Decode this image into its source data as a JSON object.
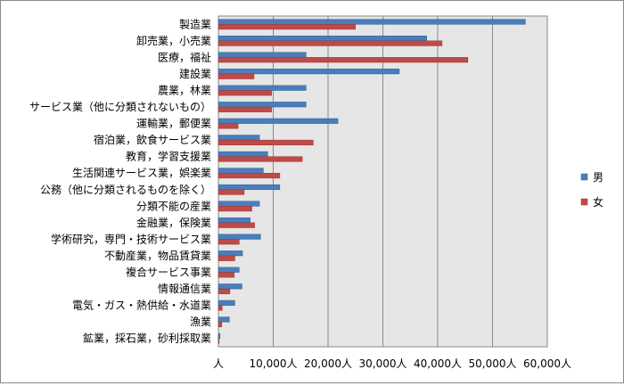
{
  "chart_data": {
    "type": "bar",
    "orientation": "horizontal",
    "categories": [
      "製造業",
      "卸売業，小売業",
      "医療，福祉",
      "建設業",
      "農業，林業",
      "サービス業（他に分類されないもの）",
      "運輸業，郵便業",
      "宿泊業，飲食サービス業",
      "教育，学習支援業",
      "生活関連サービス業，娯楽業",
      "公務（他に分類されるものを除く）",
      "分類不能の産業",
      "金融業，保険業",
      "学術研究，専門・技術サービス業",
      "不動産業，物品賃貸業",
      "複合サービス事業",
      "情報通信業",
      "電気・ガス・熱供給・水道業",
      "漁業",
      "鉱業，採石業，砂利採取業"
    ],
    "series": [
      {
        "name": "男",
        "color": "#4a7ebb",
        "values": [
          56000,
          38000,
          16000,
          33000,
          16000,
          16000,
          21800,
          7500,
          9000,
          8200,
          11200,
          7500,
          5800,
          7700,
          4400,
          3800,
          4300,
          3000,
          2000,
          300
        ]
      },
      {
        "name": "女",
        "color": "#be4b48",
        "values": [
          25000,
          40800,
          45500,
          6500,
          9700,
          9700,
          3600,
          17300,
          15300,
          11200,
          4700,
          6100,
          6600,
          3800,
          3000,
          2900,
          2100,
          700,
          600,
          50
        ]
      }
    ],
    "x_ticks": [
      "人",
      "10,000人",
      "20,000人",
      "30,000人",
      "40,000人",
      "50,000人",
      "60,000人"
    ],
    "xlim": [
      0,
      60000
    ],
    "grid": true,
    "legend_position": "right"
  }
}
